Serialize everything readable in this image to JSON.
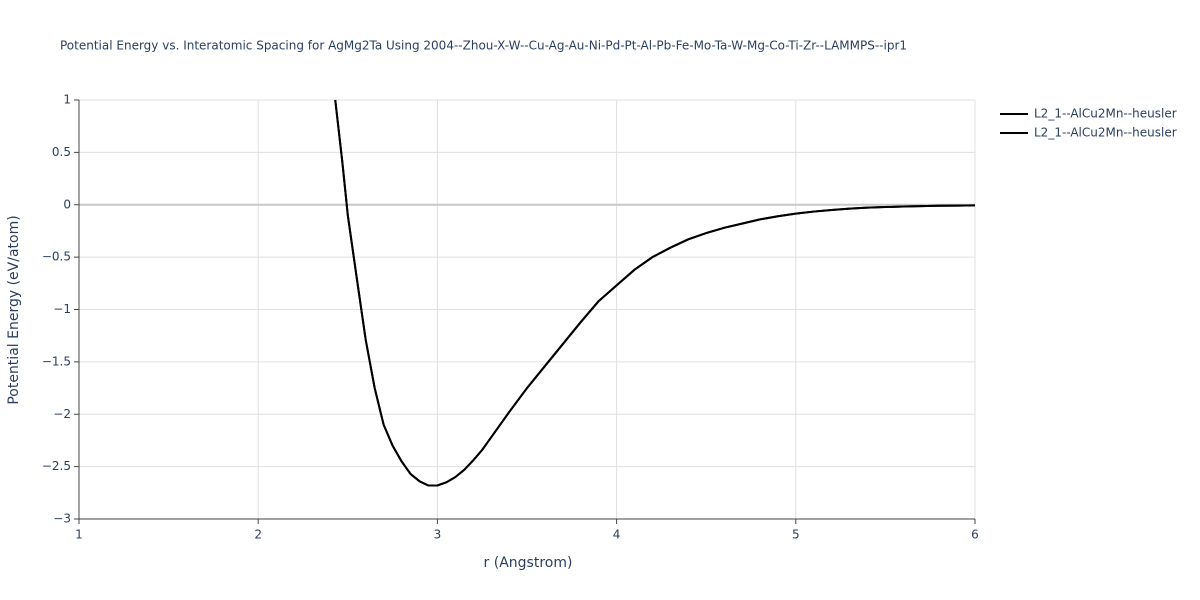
{
  "chart_data": {
    "type": "line",
    "title": "Potential Energy vs. Interatomic Spacing for AgMg2Ta Using 2004--Zhou-X-W--Cu-Ag-Au-Ni-Pd-Pt-Al-Pb-Fe-Mo-Ta-W-Mg-Co-Ti-Zr--LAMMPS--ipr1",
    "x_label": "r (Angstrom)",
    "y_label": "Potential Energy (eV/atom)",
    "x": [
      2.43,
      2.47,
      2.5,
      2.55,
      2.6,
      2.65,
      2.7,
      2.75,
      2.8,
      2.85,
      2.9,
      2.95,
      3.0,
      3.05,
      3.1,
      3.15,
      3.2,
      3.25,
      3.3,
      3.4,
      3.5,
      3.6,
      3.7,
      3.8,
      3.9,
      4.0,
      4.1,
      4.2,
      4.3,
      4.4,
      4.5,
      4.6,
      4.7,
      4.8,
      4.9,
      5.0,
      5.1,
      5.2,
      5.3,
      5.4,
      5.5,
      5.6,
      5.7,
      5.8,
      5.9,
      6.0
    ],
    "series": [
      {
        "name": "L2_1--AlCu2Mn--heusler",
        "color": "#000000",
        "values": [
          1.0,
          0.4,
          -0.1,
          -0.7,
          -1.29,
          -1.75,
          -2.1,
          -2.3,
          -2.45,
          -2.57,
          -2.64,
          -2.68,
          -2.68,
          -2.65,
          -2.6,
          -2.53,
          -2.44,
          -2.34,
          -2.22,
          -1.98,
          -1.75,
          -1.54,
          -1.33,
          -1.12,
          -0.92,
          -0.77,
          -0.62,
          -0.5,
          -0.41,
          -0.33,
          -0.27,
          -0.22,
          -0.18,
          -0.14,
          -0.11,
          -0.085,
          -0.065,
          -0.05,
          -0.037,
          -0.028,
          -0.022,
          -0.017,
          -0.013,
          -0.01,
          -0.008,
          -0.006
        ]
      },
      {
        "name": "L2_1--AlCu2Mn--heusler",
        "color": "#000000",
        "values": [
          1.0,
          0.4,
          -0.1,
          -0.7,
          -1.29,
          -1.75,
          -2.1,
          -2.3,
          -2.45,
          -2.57,
          -2.64,
          -2.68,
          -2.68,
          -2.65,
          -2.6,
          -2.53,
          -2.44,
          -2.34,
          -2.22,
          -1.98,
          -1.75,
          -1.54,
          -1.33,
          -1.12,
          -0.92,
          -0.77,
          -0.62,
          -0.5,
          -0.41,
          -0.33,
          -0.27,
          -0.22,
          -0.18,
          -0.14,
          -0.11,
          -0.085,
          -0.065,
          -0.05,
          -0.037,
          -0.028,
          -0.022,
          -0.017,
          -0.013,
          -0.01,
          -0.008,
          -0.006
        ]
      }
    ],
    "xlim": [
      1,
      6
    ],
    "xticks": [
      1,
      2,
      3,
      4,
      5,
      6
    ],
    "ylim": [
      -3,
      1
    ],
    "yticks": [
      {
        "value": -3,
        "label": "−3"
      },
      {
        "value": -2.5,
        "label": "−2.5"
      },
      {
        "value": -2,
        "label": "−2"
      },
      {
        "value": -1.5,
        "label": "−1.5"
      },
      {
        "value": -1,
        "label": "−1"
      },
      {
        "value": -0.5,
        "label": "−0.5"
      },
      0,
      0.5,
      1
    ],
    "grid": true,
    "legend": "right"
  }
}
